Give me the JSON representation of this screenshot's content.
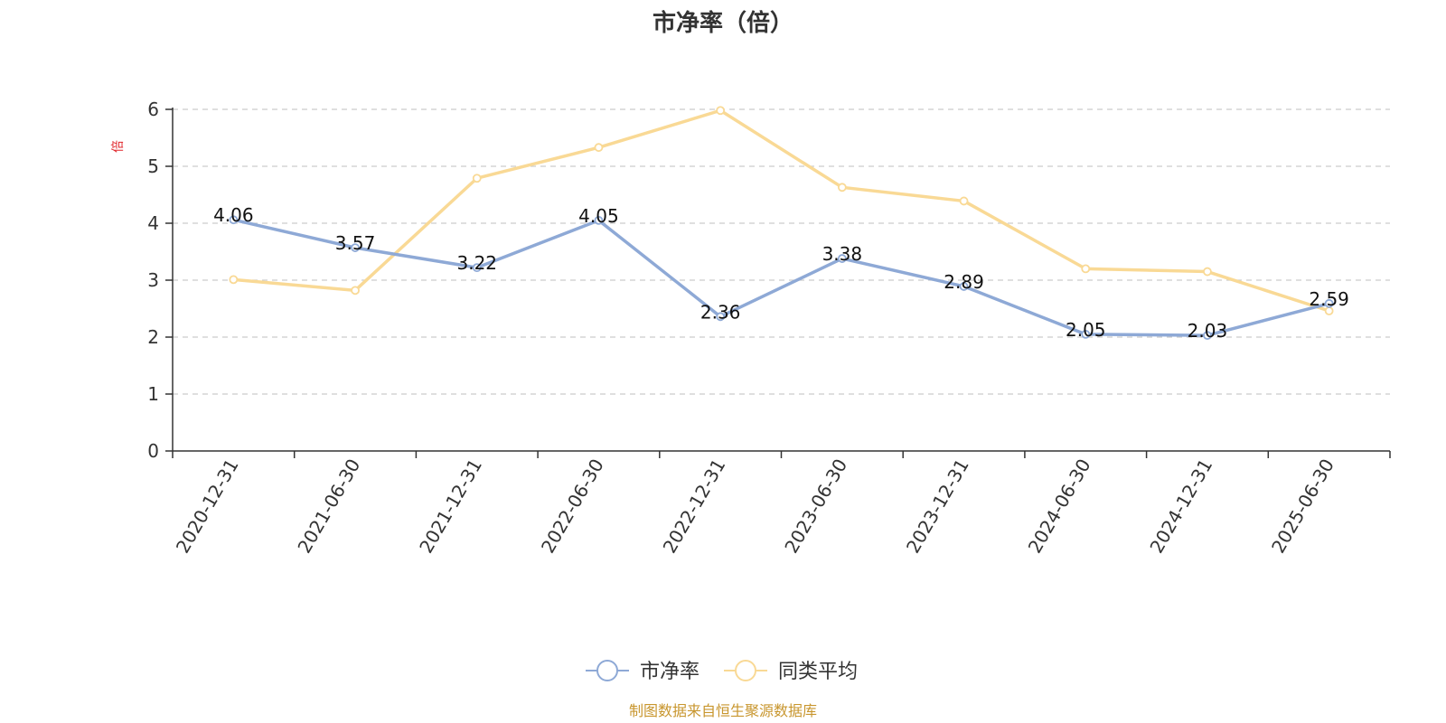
{
  "chart_data": {
    "type": "line",
    "title": "市净率（倍）",
    "ylabel": "倍",
    "xlabel": "",
    "ylim": [
      0,
      6
    ],
    "yticks": [
      0,
      1,
      2,
      3,
      4,
      5,
      6
    ],
    "grid": true,
    "legend_position": "bottom",
    "categories": [
      "2020-12-31",
      "2021-06-30",
      "2021-12-31",
      "2022-06-30",
      "2022-12-31",
      "2023-06-30",
      "2023-12-31",
      "2024-06-30",
      "2024-12-31",
      "2025-06-30"
    ],
    "series": [
      {
        "name": "市净率",
        "color": "#8ea9d6",
        "values": [
          4.06,
          3.57,
          3.22,
          4.05,
          2.36,
          3.38,
          2.89,
          2.05,
          2.03,
          2.59
        ],
        "labels": [
          "4.06",
          "3.57",
          "3.22",
          "4.05",
          "2.36",
          "3.38",
          "2.89",
          "2.05",
          "2.03",
          "2.59"
        ]
      },
      {
        "name": "同类平均",
        "color": "#f9d995",
        "values": [
          3.01,
          2.82,
          4.79,
          5.33,
          5.98,
          4.63,
          4.39,
          3.2,
          3.15,
          2.46
        ]
      }
    ],
    "source": "制图数据来自恒生聚源数据库"
  }
}
